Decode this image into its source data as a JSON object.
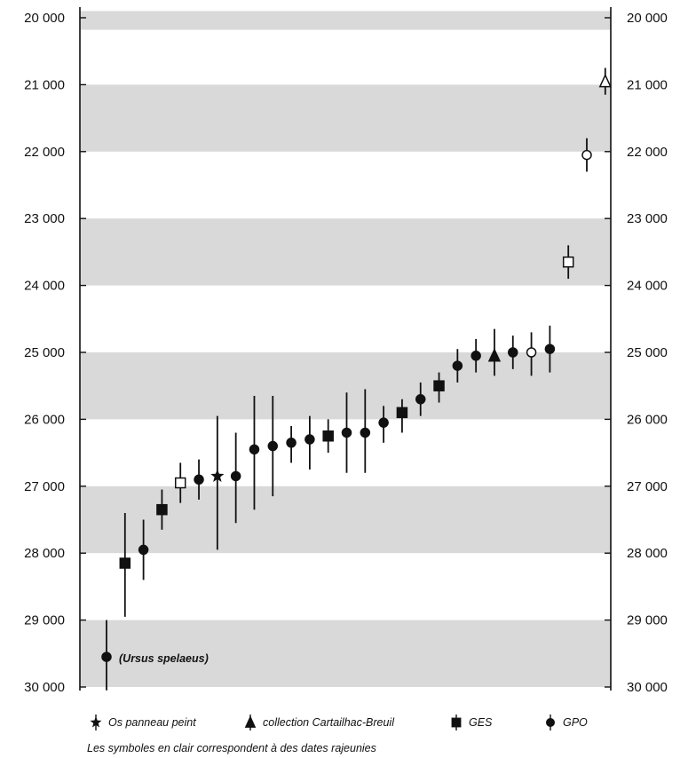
{
  "chart_data": {
    "type": "scatter",
    "y_axis": {
      "min": 20000,
      "max": 30000,
      "reversed": true,
      "tick_labels": [
        "20 000",
        "21 000",
        "22 000",
        "23 000",
        "24 000",
        "25 000",
        "26 000",
        "27 000",
        "28 000",
        "29 000",
        "30 000"
      ],
      "tick_values": [
        20000,
        21000,
        22000,
        23000,
        24000,
        25000,
        26000,
        27000,
        28000,
        29000,
        30000
      ]
    },
    "bands": [
      [
        19900,
        20180
      ],
      [
        21000,
        22000
      ],
      [
        23000,
        24000
      ],
      [
        25000,
        26000
      ],
      [
        27000,
        28000
      ],
      [
        29000,
        30000
      ]
    ],
    "annotation": "(Ursus spelaeus)",
    "legend": [
      {
        "symbol": "star",
        "label": "Os panneau peint"
      },
      {
        "symbol": "triangle",
        "label": "collection Cartailhac-Breuil"
      },
      {
        "symbol": "square",
        "label": "GES"
      },
      {
        "symbol": "circle",
        "label": "GPO"
      }
    ],
    "footnote": "Les symboles en clair correspondent à des dates rajeunies",
    "points": [
      {
        "rank": 1,
        "symbol": "circle",
        "open": false,
        "value": 29550,
        "low": 29000,
        "high": 30050,
        "labeled": true
      },
      {
        "rank": 2,
        "symbol": "square",
        "open": false,
        "value": 28150,
        "low": 27400,
        "high": 28950
      },
      {
        "rank": 3,
        "symbol": "circle",
        "open": false,
        "value": 27950,
        "low": 27500,
        "high": 28400
      },
      {
        "rank": 4,
        "symbol": "square",
        "open": false,
        "value": 27350,
        "low": 27050,
        "high": 27650
      },
      {
        "rank": 5,
        "symbol": "square",
        "open": true,
        "value": 26950,
        "low": 26650,
        "high": 27250
      },
      {
        "rank": 6,
        "symbol": "circle",
        "open": false,
        "value": 26900,
        "low": 26600,
        "high": 27200
      },
      {
        "rank": 7,
        "symbol": "star",
        "open": false,
        "value": 26850,
        "low": 25950,
        "high": 27950
      },
      {
        "rank": 8,
        "symbol": "circle",
        "open": false,
        "value": 26850,
        "low": 26200,
        "high": 27550
      },
      {
        "rank": 9,
        "symbol": "circle",
        "open": false,
        "value": 26450,
        "low": 25650,
        "high": 27350
      },
      {
        "rank": 10,
        "symbol": "circle",
        "open": false,
        "value": 26400,
        "low": 25650,
        "high": 27150
      },
      {
        "rank": 11,
        "symbol": "circle",
        "open": false,
        "value": 26350,
        "low": 26100,
        "high": 26650
      },
      {
        "rank": 12,
        "symbol": "circle",
        "open": false,
        "value": 26300,
        "low": 25950,
        "high": 26750
      },
      {
        "rank": 13,
        "symbol": "square",
        "open": false,
        "value": 26250,
        "low": 26000,
        "high": 26500
      },
      {
        "rank": 14,
        "symbol": "circle",
        "open": false,
        "value": 26200,
        "low": 25600,
        "high": 26800
      },
      {
        "rank": 15,
        "symbol": "circle",
        "open": false,
        "value": 26200,
        "low": 25550,
        "high": 26800
      },
      {
        "rank": 16,
        "symbol": "circle",
        "open": false,
        "value": 26050,
        "low": 25800,
        "high": 26350
      },
      {
        "rank": 17,
        "symbol": "square",
        "open": false,
        "value": 25900,
        "low": 25700,
        "high": 26200
      },
      {
        "rank": 18,
        "symbol": "circle",
        "open": false,
        "value": 25700,
        "low": 25450,
        "high": 25950
      },
      {
        "rank": 19,
        "symbol": "square",
        "open": false,
        "value": 25500,
        "low": 25300,
        "high": 25750
      },
      {
        "rank": 20,
        "symbol": "circle",
        "open": false,
        "value": 25200,
        "low": 24950,
        "high": 25450
      },
      {
        "rank": 21,
        "symbol": "circle",
        "open": false,
        "value": 25050,
        "low": 24800,
        "high": 25300
      },
      {
        "rank": 22,
        "symbol": "triangle",
        "open": false,
        "value": 25050,
        "low": 24650,
        "high": 25350
      },
      {
        "rank": 23,
        "symbol": "circle",
        "open": false,
        "value": 25000,
        "low": 24750,
        "high": 25250
      },
      {
        "rank": 24,
        "symbol": "circle",
        "open": true,
        "value": 25000,
        "low": 24700,
        "high": 25350
      },
      {
        "rank": 25,
        "symbol": "circle",
        "open": false,
        "value": 24950,
        "low": 24600,
        "high": 25300
      },
      {
        "rank": 26,
        "symbol": "square",
        "open": true,
        "value": 23650,
        "low": 23400,
        "high": 23900
      },
      {
        "rank": 27,
        "symbol": "circle",
        "open": true,
        "value": 22050,
        "low": 21800,
        "high": 22300
      },
      {
        "rank": 28,
        "symbol": "triangle",
        "open": true,
        "value": 20950,
        "low": 20750,
        "high": 21150
      }
    ]
  }
}
